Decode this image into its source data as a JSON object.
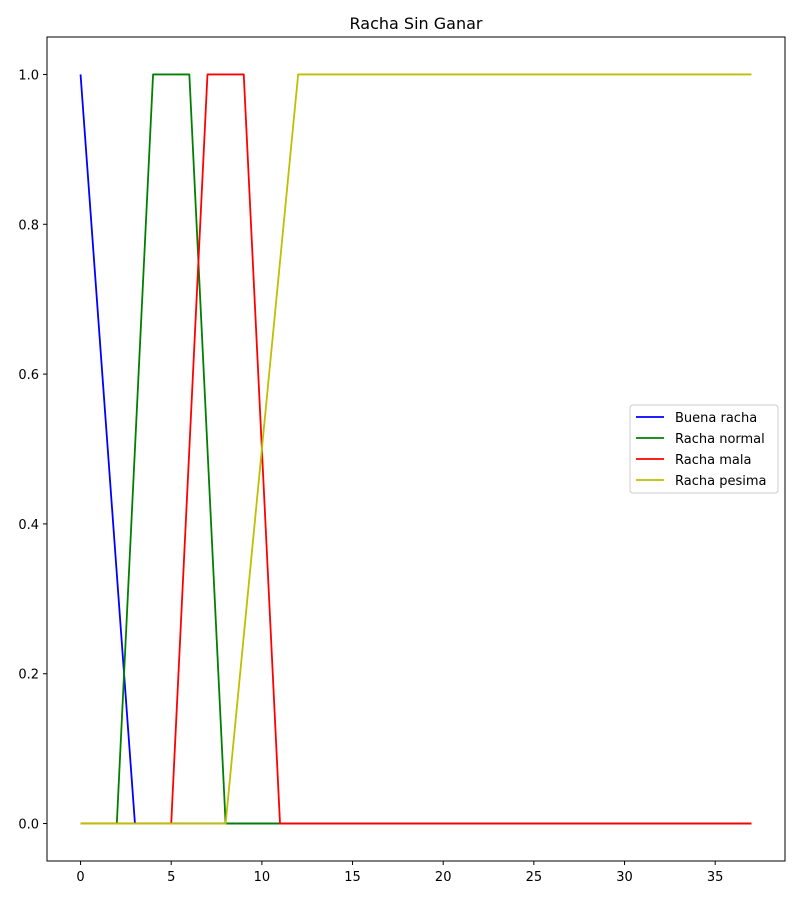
{
  "chart_data": {
    "type": "line",
    "title": "Racha Sin Ganar",
    "xlabel": "",
    "ylabel": "",
    "xlim": [
      -1.85,
      38.85
    ],
    "ylim": [
      -0.05,
      1.05
    ],
    "xticks": [
      0,
      5,
      10,
      15,
      20,
      25,
      30,
      35
    ],
    "yticks": [
      0.0,
      0.2,
      0.4,
      0.6,
      0.8,
      1.0
    ],
    "xtick_labels": [
      "0",
      "5",
      "10",
      "15",
      "20",
      "25",
      "30",
      "35"
    ],
    "ytick_labels": [
      "0.0",
      "0.2",
      "0.4",
      "0.6",
      "0.8",
      "1.0"
    ],
    "grid": false,
    "legend_position": "center-right",
    "series": [
      {
        "name": "Buena racha",
        "color": "#0000ff",
        "x": [
          0,
          3,
          37
        ],
        "y": [
          1,
          0,
          0
        ]
      },
      {
        "name": "Racha normal",
        "color": "#008000",
        "x": [
          0,
          2,
          4,
          6,
          8,
          37
        ],
        "y": [
          0,
          0,
          1,
          1,
          0,
          0
        ]
      },
      {
        "name": "Racha mala",
        "color": "#ff0000",
        "x": [
          0,
          5,
          7,
          9,
          11,
          37
        ],
        "y": [
          0,
          0,
          1,
          1,
          0,
          0
        ]
      },
      {
        "name": "Racha pesima",
        "color": "#bfbf00",
        "x": [
          0,
          8,
          12,
          37
        ],
        "y": [
          0,
          0,
          1,
          1
        ]
      }
    ]
  }
}
